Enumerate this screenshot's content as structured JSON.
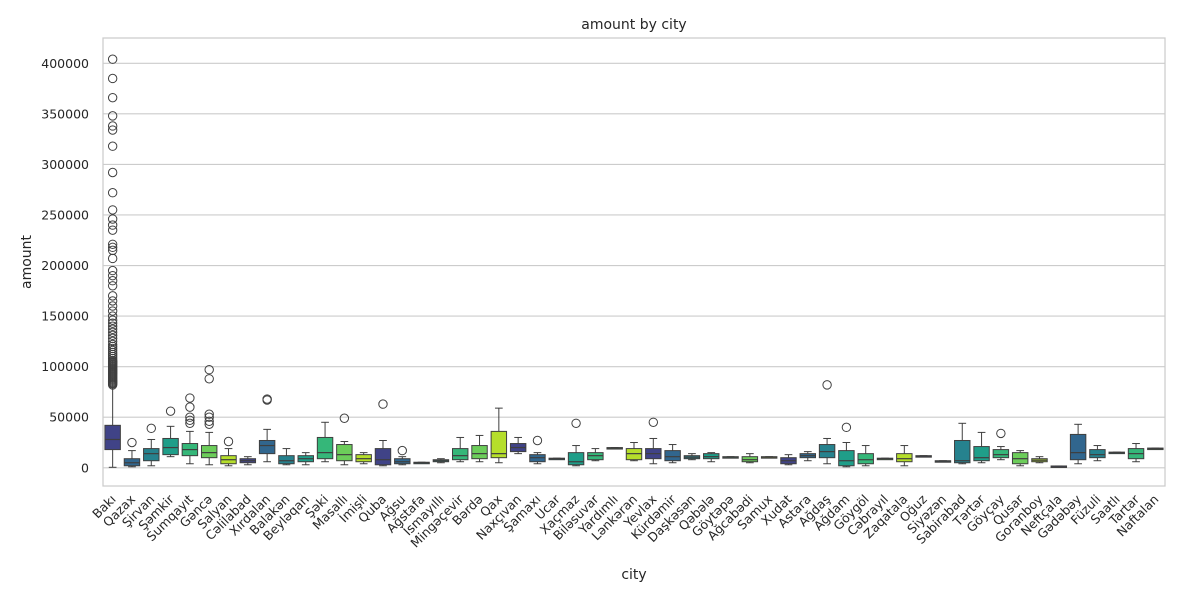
{
  "chart_data": {
    "type": "box",
    "title": "amount by city",
    "xlabel": "city",
    "ylabel": "amount",
    "ylim": [
      -18000,
      425000
    ],
    "yticks": [
      0,
      50000,
      100000,
      150000,
      200000,
      250000,
      300000,
      350000,
      400000
    ],
    "grid": "horizontal",
    "palette": "viridis",
    "colors": [
      "#404387",
      "#31668e",
      "#26828e",
      "#1f9e89",
      "#35b779",
      "#6ccd5a",
      "#b5de2b"
    ],
    "boxes": [
      {
        "city": "Bakı",
        "q1": 18000,
        "median": 28000,
        "q3": 42000,
        "whisker_low": 500,
        "whisker_high": 80000,
        "outliers": [
          82000,
          83000,
          84000,
          85000,
          86000,
          87000,
          88000,
          89000,
          90000,
          91000,
          92000,
          93000,
          94000,
          95000,
          96000,
          97000,
          98000,
          99000,
          100000,
          101000,
          102000,
          103000,
          104000,
          105000,
          106000,
          108000,
          110000,
          112000,
          114000,
          116000,
          118000,
          120000,
          122000,
          125000,
          128000,
          131000,
          134000,
          137000,
          140000,
          143000,
          146000,
          150000,
          155000,
          160000,
          165000,
          170000,
          180000,
          185000,
          190000,
          195000,
          207000,
          215000,
          218000,
          221000,
          235000,
          240000,
          246000,
          255000,
          272000,
          292000,
          318000,
          334000,
          338000,
          348000,
          366000,
          385000,
          404000
        ]
      },
      {
        "city": "Qazax",
        "q1": 2000,
        "median": 5000,
        "q3": 9000,
        "whisker_low": 1000,
        "whisker_high": 17000,
        "outliers": [
          25000
        ]
      },
      {
        "city": "Şirvan",
        "q1": 7000,
        "median": 14000,
        "q3": 19000,
        "whisker_low": 2000,
        "whisker_high": 28000,
        "outliers": [
          39000
        ]
      },
      {
        "city": "Şəmkir",
        "q1": 13000,
        "median": 20000,
        "q3": 29000,
        "whisker_low": 11000,
        "whisker_high": 41000,
        "outliers": [
          56000
        ]
      },
      {
        "city": "Sumqayıt",
        "q1": 12000,
        "median": 18000,
        "q3": 24000,
        "whisker_low": 4000,
        "whisker_high": 36000,
        "outliers": [
          44000,
          47000,
          50000,
          60000,
          69000
        ]
      },
      {
        "city": "Gəncə",
        "q1": 10000,
        "median": 15000,
        "q3": 22000,
        "whisker_low": 3000,
        "whisker_high": 35000,
        "outliers": [
          43000,
          46000,
          50000,
          53000,
          88000,
          97000
        ]
      },
      {
        "city": "Salyan",
        "q1": 4000,
        "median": 8000,
        "q3": 12000,
        "whisker_low": 2000,
        "whisker_high": 19000,
        "outliers": [
          26000
        ]
      },
      {
        "city": "Cəlilabad",
        "q1": 5000,
        "median": 7000,
        "q3": 9000,
        "whisker_low": 3000,
        "whisker_high": 11000,
        "outliers": []
      },
      {
        "city": "Xırdalan",
        "q1": 14000,
        "median": 22000,
        "q3": 27000,
        "whisker_low": 6000,
        "whisker_high": 38000,
        "outliers": [
          67000,
          68000
        ]
      },
      {
        "city": "Balakən",
        "q1": 4000,
        "median": 7000,
        "q3": 12000,
        "whisker_low": 3000,
        "whisker_high": 19000,
        "outliers": []
      },
      {
        "city": "Beyləqan",
        "q1": 6000,
        "median": 9000,
        "q3": 12000,
        "whisker_low": 3000,
        "whisker_high": 15000,
        "outliers": []
      },
      {
        "city": "Şəki",
        "q1": 9000,
        "median": 15000,
        "q3": 30000,
        "whisker_low": 6000,
        "whisker_high": 45000,
        "outliers": []
      },
      {
        "city": "Masallı",
        "q1": 7000,
        "median": 13000,
        "q3": 23000,
        "whisker_low": 3000,
        "whisker_high": 26000,
        "outliers": [
          49000
        ]
      },
      {
        "city": "İmişli",
        "q1": 6000,
        "median": 9000,
        "q3": 13000,
        "whisker_low": 4000,
        "whisker_high": 15000,
        "outliers": []
      },
      {
        "city": "Quba",
        "q1": 3000,
        "median": 8000,
        "q3": 19000,
        "whisker_low": 2000,
        "whisker_high": 27000,
        "outliers": [
          63000
        ]
      },
      {
        "city": "Ağsu",
        "q1": 4000,
        "median": 6000,
        "q3": 9000,
        "whisker_low": 3000,
        "whisker_high": 11000,
        "outliers": [
          17000
        ]
      },
      {
        "city": "Ağstafa",
        "q1": 4500,
        "median": 5000,
        "q3": 5500,
        "whisker_low": 4500,
        "whisker_high": 5500,
        "outliers": []
      },
      {
        "city": "İsmayıllı",
        "q1": 6000,
        "median": 7000,
        "q3": 8000,
        "whisker_low": 5000,
        "whisker_high": 9000,
        "outliers": []
      },
      {
        "city": "Mingəçevir",
        "q1": 8000,
        "median": 12000,
        "q3": 19000,
        "whisker_low": 6000,
        "whisker_high": 30000,
        "outliers": []
      },
      {
        "city": "Bərdə",
        "q1": 9000,
        "median": 14000,
        "q3": 22000,
        "whisker_low": 6000,
        "whisker_high": 32000,
        "outliers": []
      },
      {
        "city": "Qax",
        "q1": 10000,
        "median": 14000,
        "q3": 36000,
        "whisker_low": 5000,
        "whisker_high": 59000,
        "outliers": []
      },
      {
        "city": "Naxçıvan",
        "q1": 16000,
        "median": 20000,
        "q3": 24000,
        "whisker_low": 14000,
        "whisker_high": 30000,
        "outliers": []
      },
      {
        "city": "Şamaxı",
        "q1": 6000,
        "median": 10000,
        "q3": 13000,
        "whisker_low": 4000,
        "whisker_high": 15000,
        "outliers": [
          27000
        ]
      },
      {
        "city": "Ucar",
        "q1": 8500,
        "median": 9000,
        "q3": 9500,
        "whisker_low": 8500,
        "whisker_high": 9500,
        "outliers": []
      },
      {
        "city": "Xaçmaz",
        "q1": 3000,
        "median": 6000,
        "q3": 15000,
        "whisker_low": 2000,
        "whisker_high": 22000,
        "outliers": [
          44000
        ]
      },
      {
        "city": "Biləsuvar",
        "q1": 8000,
        "median": 12000,
        "q3": 15000,
        "whisker_low": 7000,
        "whisker_high": 19000,
        "outliers": []
      },
      {
        "city": "Yardımlı",
        "q1": 19000,
        "median": 19500,
        "q3": 20000,
        "whisker_low": 19000,
        "whisker_high": 20000,
        "outliers": []
      },
      {
        "city": "Lənkəran",
        "q1": 8000,
        "median": 14000,
        "q3": 19000,
        "whisker_low": 7000,
        "whisker_high": 25000,
        "outliers": []
      },
      {
        "city": "Yevlax",
        "q1": 9000,
        "median": 14000,
        "q3": 19000,
        "whisker_low": 4000,
        "whisker_high": 29000,
        "outliers": [
          45000
        ]
      },
      {
        "city": "Kürdəmir",
        "q1": 7000,
        "median": 11000,
        "q3": 17000,
        "whisker_low": 5000,
        "whisker_high": 23000,
        "outliers": []
      },
      {
        "city": "Daşkəsən",
        "q1": 9000,
        "median": 10500,
        "q3": 12000,
        "whisker_low": 8000,
        "whisker_high": 14000,
        "outliers": []
      },
      {
        "city": "Qəbələ",
        "q1": 9000,
        "median": 11000,
        "q3": 14000,
        "whisker_low": 6000,
        "whisker_high": 15000,
        "outliers": []
      },
      {
        "city": "Göytəpə",
        "q1": 10000,
        "median": 10500,
        "q3": 11000,
        "whisker_low": 10000,
        "whisker_high": 11000,
        "outliers": []
      },
      {
        "city": "Ağcabədi",
        "q1": 6000,
        "median": 8000,
        "q3": 11000,
        "whisker_low": 5000,
        "whisker_high": 14000,
        "outliers": []
      },
      {
        "city": "Samux",
        "q1": 10000,
        "median": 10500,
        "q3": 11000,
        "whisker_low": 10000,
        "whisker_high": 11000,
        "outliers": []
      },
      {
        "city": "Xudat",
        "q1": 4000,
        "median": 7000,
        "q3": 10000,
        "whisker_low": 3000,
        "whisker_high": 13000,
        "outliers": []
      },
      {
        "city": "Astara",
        "q1": 10000,
        "median": 12000,
        "q3": 14000,
        "whisker_low": 7000,
        "whisker_high": 16000,
        "outliers": []
      },
      {
        "city": "Ağdaş",
        "q1": 10000,
        "median": 16000,
        "q3": 23000,
        "whisker_low": 4000,
        "whisker_high": 29000,
        "outliers": [
          82000
        ]
      },
      {
        "city": "Ağdam",
        "q1": 2000,
        "median": 7000,
        "q3": 17000,
        "whisker_low": 1000,
        "whisker_high": 25000,
        "outliers": [
          40000
        ]
      },
      {
        "city": "Göygöl",
        "q1": 4000,
        "median": 8000,
        "q3": 14000,
        "whisker_low": 2000,
        "whisker_high": 22000,
        "outliers": []
      },
      {
        "city": "Cəbrayıl",
        "q1": 8500,
        "median": 9000,
        "q3": 9500,
        "whisker_low": 8500,
        "whisker_high": 9500,
        "outliers": []
      },
      {
        "city": "Zaqatala",
        "q1": 6000,
        "median": 9000,
        "q3": 14000,
        "whisker_low": 2000,
        "whisker_high": 22000,
        "outliers": []
      },
      {
        "city": "Oğuz",
        "q1": 11000,
        "median": 11500,
        "q3": 12000,
        "whisker_low": 11000,
        "whisker_high": 12000,
        "outliers": []
      },
      {
        "city": "Siyəzən",
        "q1": 6000,
        "median": 6500,
        "q3": 7000,
        "whisker_low": 6000,
        "whisker_high": 7000,
        "outliers": []
      },
      {
        "city": "Sabirabad",
        "q1": 5000,
        "median": 7000,
        "q3": 27000,
        "whisker_low": 4000,
        "whisker_high": 44000,
        "outliers": []
      },
      {
        "city": "Tərtər",
        "q1": 7000,
        "median": 10000,
        "q3": 21000,
        "whisker_low": 5000,
        "whisker_high": 35000,
        "outliers": []
      },
      {
        "city": "Göyçay",
        "q1": 10000,
        "median": 13000,
        "q3": 18000,
        "whisker_low": 8000,
        "whisker_high": 21000,
        "outliers": [
          34000
        ]
      },
      {
        "city": "Qusar",
        "q1": 4000,
        "median": 9000,
        "q3": 15000,
        "whisker_low": 2000,
        "whisker_high": 17000,
        "outliers": []
      },
      {
        "city": "Goranboy",
        "q1": 6000,
        "median": 7500,
        "q3": 9000,
        "whisker_low": 5000,
        "whisker_high": 11000,
        "outliers": []
      },
      {
        "city": "Neftçala",
        "q1": 1200,
        "median": 1500,
        "q3": 1800,
        "whisker_low": 1200,
        "whisker_high": 1800,
        "outliers": []
      },
      {
        "city": "Gədəbəy",
        "q1": 8000,
        "median": 15000,
        "q3": 33000,
        "whisker_low": 4000,
        "whisker_high": 43000,
        "outliers": []
      },
      {
        "city": "Füzuli",
        "q1": 10000,
        "median": 13000,
        "q3": 18000,
        "whisker_low": 7000,
        "whisker_high": 22000,
        "outliers": []
      },
      {
        "city": "Saatlı",
        "q1": 14500,
        "median": 15000,
        "q3": 15500,
        "whisker_low": 14500,
        "whisker_high": 15500,
        "outliers": []
      },
      {
        "city": "Tartar",
        "q1": 9000,
        "median": 14000,
        "q3": 19000,
        "whisker_low": 6000,
        "whisker_high": 24000,
        "outliers": []
      },
      {
        "city": "Naftalan",
        "q1": 18500,
        "median": 19000,
        "q3": 19500,
        "whisker_low": 18500,
        "whisker_high": 19500,
        "outliers": []
      }
    ]
  }
}
